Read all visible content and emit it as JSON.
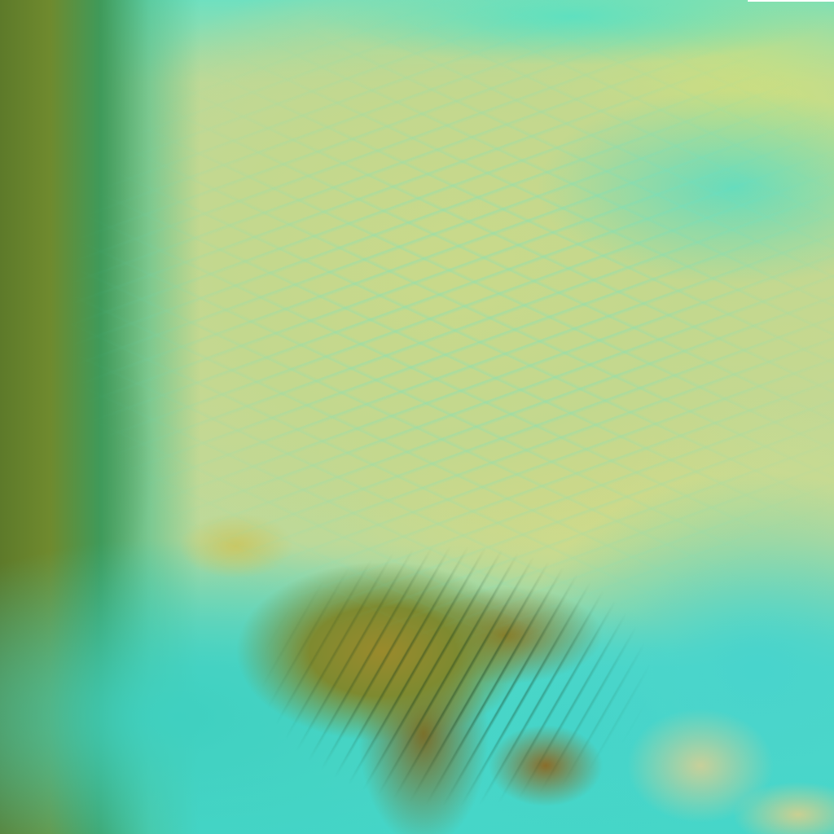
{
  "image": {
    "kind": "false-color satellite imagery",
    "colors": {
      "cloud_cover": "#c6d890",
      "ice_cloud": "#5fe0c8",
      "water": "#45d6c8",
      "vegetation_land": "#5d7a2a",
      "mountain_terrain": "#9a8a2c"
    }
  }
}
